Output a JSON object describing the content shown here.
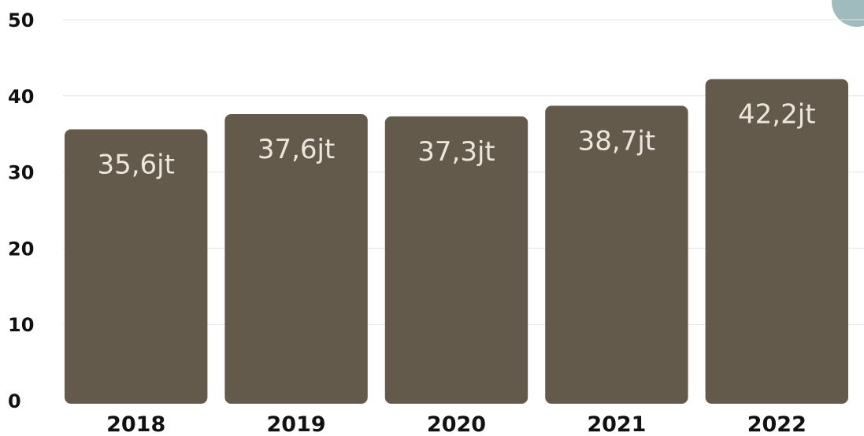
{
  "chart_data": {
    "type": "bar",
    "title": "",
    "xlabel": "",
    "ylabel": "",
    "categories": [
      "2018",
      "2019",
      "2020",
      "2021",
      "2022"
    ],
    "values": [
      35.6,
      37.6,
      37.3,
      38.7,
      42.2
    ],
    "data_labels": [
      "35,6jt",
      "37,6jt",
      "37,3jt",
      "38,7jt",
      "42,2jt"
    ],
    "ylim": [
      0,
      50
    ],
    "yticks": [
      "0",
      "10",
      "20",
      "30",
      "40",
      "50"
    ],
    "grid": true,
    "legend": "none",
    "colors": {
      "bar": "#635a4b",
      "label": "#ece6dc",
      "grid": "#e4e4e4",
      "accent_circle": "#9fbbbd"
    }
  }
}
